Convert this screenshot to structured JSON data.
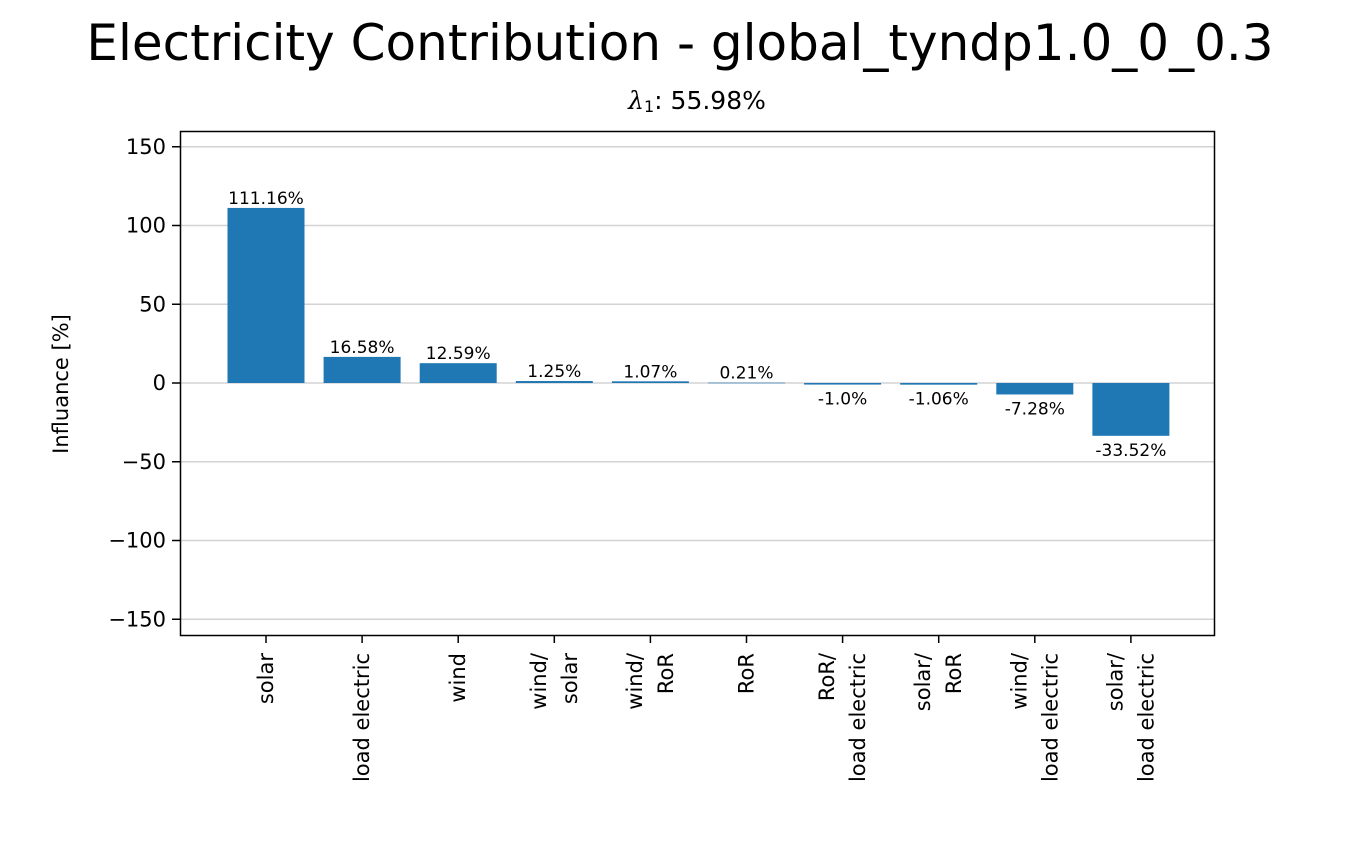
{
  "chart_data": {
    "type": "bar",
    "title": "Electricity Contribution - global_tyndp1.0_0_0.3",
    "subtitle": {
      "symbol": "λ",
      "subscript": "1",
      "text": ": 55.98%"
    },
    "xlabel": "",
    "ylabel": "Influance [%]",
    "ylim": [
      -160,
      160
    ],
    "yticks": [
      150,
      100,
      50,
      0,
      -50,
      -100,
      -150
    ],
    "ytick_labels": [
      "150",
      "100",
      "50",
      "0",
      "−50",
      "−100",
      "−150"
    ],
    "grid": "horizontal",
    "bar_color": "#1f77b4",
    "categories": [
      [
        "solar"
      ],
      [
        "load electric"
      ],
      [
        "wind"
      ],
      [
        "wind/",
        "solar"
      ],
      [
        "wind/",
        "RoR"
      ],
      [
        "RoR"
      ],
      [
        "RoR/",
        "load electric"
      ],
      [
        "solar/",
        "RoR"
      ],
      [
        "wind/",
        "load electric"
      ],
      [
        "solar/",
        "load electric"
      ]
    ],
    "values": [
      111.16,
      16.58,
      12.59,
      1.25,
      1.07,
      0.21,
      -1.0,
      -1.06,
      -7.28,
      -33.52
    ],
    "labels": [
      "111.16%",
      "16.58%",
      "12.59%",
      "1.25%",
      "1.07%",
      "0.21%",
      "-1.0%",
      "-1.06%",
      "-7.28%",
      "-33.52%"
    ]
  }
}
